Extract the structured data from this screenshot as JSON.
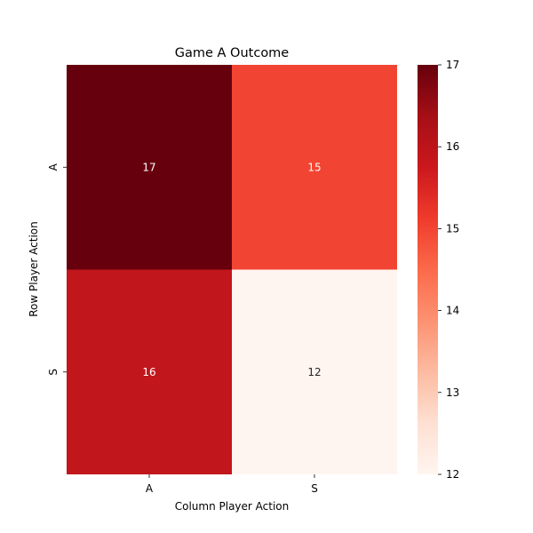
{
  "chart_data": {
    "type": "heatmap",
    "title": "Game A Outcome",
    "xlabel": "Column Player Action",
    "ylabel": "Row Player Action",
    "x_categories": [
      "A",
      "S"
    ],
    "y_categories": [
      "A",
      "S"
    ],
    "values": [
      [
        17,
        15
      ],
      [
        16,
        12
      ]
    ],
    "colormap": "Reds",
    "vmin": 12,
    "vmax": 17,
    "colorbar_ticks": [
      12,
      13,
      14,
      15,
      16,
      17
    ],
    "colorbar_tick_labels": [
      "12",
      "13",
      "14",
      "15",
      "16",
      "17"
    ],
    "cell_colors": [
      [
        "#67000d",
        "#f14432"
      ],
      [
        "#c0161c",
        "#fff5f0"
      ]
    ],
    "annotation_colors": [
      [
        "#ffffff",
        "#ffffff"
      ],
      [
        "#ffffff",
        "#262626"
      ]
    ]
  }
}
